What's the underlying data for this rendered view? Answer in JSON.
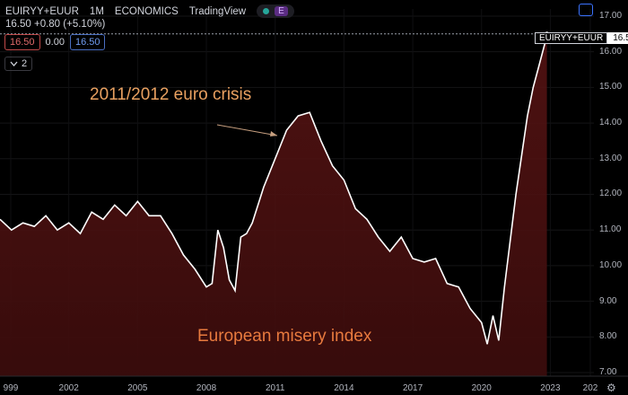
{
  "header": {
    "symbol": "EUIRYY+EUUR",
    "interval": "1M",
    "source": "ECONOMICS",
    "platform": "TradingView",
    "badge": "E",
    "last_value": "16.50",
    "change": "+0.80",
    "change_pct": "(+5.10%)",
    "sell_price": "16.50",
    "spread": "0.00",
    "buy_price": "16.50",
    "indicators_count": "2"
  },
  "price_label": {
    "symbol": "EUIRYY+EUUR",
    "value": "16.50"
  },
  "annotations": {
    "crisis": "2011/2012 euro crisis",
    "caption": "European misery index"
  },
  "colors": {
    "line": "#ffffff",
    "area_top": "#5a1414",
    "area_bottom": "#3a0c0c",
    "annotation": "#e8a060",
    "caption": "#e87a3e"
  },
  "icons": {
    "toggle": "square-icon",
    "collapse": "chevron-down-icon",
    "settings": "gear-icon"
  },
  "chart_data": {
    "type": "area",
    "title": "",
    "ylim": [
      6.9,
      17.2
    ],
    "y_ticks": [
      "7.00",
      "8.00",
      "9.00",
      "10.00",
      "11.00",
      "12.00",
      "13.00",
      "14.00",
      "15.00",
      "16.00",
      "17.00"
    ],
    "x_ticks": [
      "999",
      "2002",
      "2005",
      "2008",
      "2011",
      "2014",
      "2017",
      "2020",
      "2023",
      "202"
    ],
    "x": [
      1999.0,
      1999.5,
      2000.0,
      2000.5,
      2001.0,
      2001.5,
      2002.0,
      2002.5,
      2003.0,
      2003.5,
      2004.0,
      2004.5,
      2005.0,
      2005.5,
      2006.0,
      2006.5,
      2007.0,
      2007.5,
      2008.0,
      2008.25,
      2008.5,
      2008.75,
      2009.0,
      2009.25,
      2009.5,
      2009.75,
      2010.0,
      2010.5,
      2011.0,
      2011.5,
      2012.0,
      2012.5,
      2013.0,
      2013.5,
      2014.0,
      2014.5,
      2015.0,
      2015.5,
      2016.0,
      2016.5,
      2017.0,
      2017.5,
      2018.0,
      2018.5,
      2019.0,
      2019.5,
      2020.0,
      2020.25,
      2020.5,
      2020.75,
      2021.0,
      2021.5,
      2022.0,
      2022.25,
      2022.5,
      2022.75,
      2022.85
    ],
    "values": [
      11.3,
      11.0,
      11.2,
      11.1,
      11.4,
      11.0,
      11.2,
      10.9,
      11.5,
      11.3,
      11.7,
      11.4,
      11.8,
      11.4,
      11.4,
      10.9,
      10.3,
      9.9,
      9.4,
      9.5,
      11.0,
      10.5,
      9.6,
      9.3,
      10.8,
      10.9,
      11.2,
      12.2,
      13.0,
      13.8,
      14.2,
      14.3,
      13.5,
      12.8,
      12.4,
      11.6,
      11.3,
      10.8,
      10.4,
      10.8,
      10.2,
      10.1,
      10.2,
      9.5,
      9.4,
      8.8,
      8.4,
      7.8,
      8.6,
      7.9,
      9.4,
      12.0,
      14.2,
      15.0,
      15.6,
      16.2,
      16.5
    ],
    "series": [
      {
        "name": "EUIRYY+EUUR",
        "values_ref": "values"
      }
    ]
  }
}
